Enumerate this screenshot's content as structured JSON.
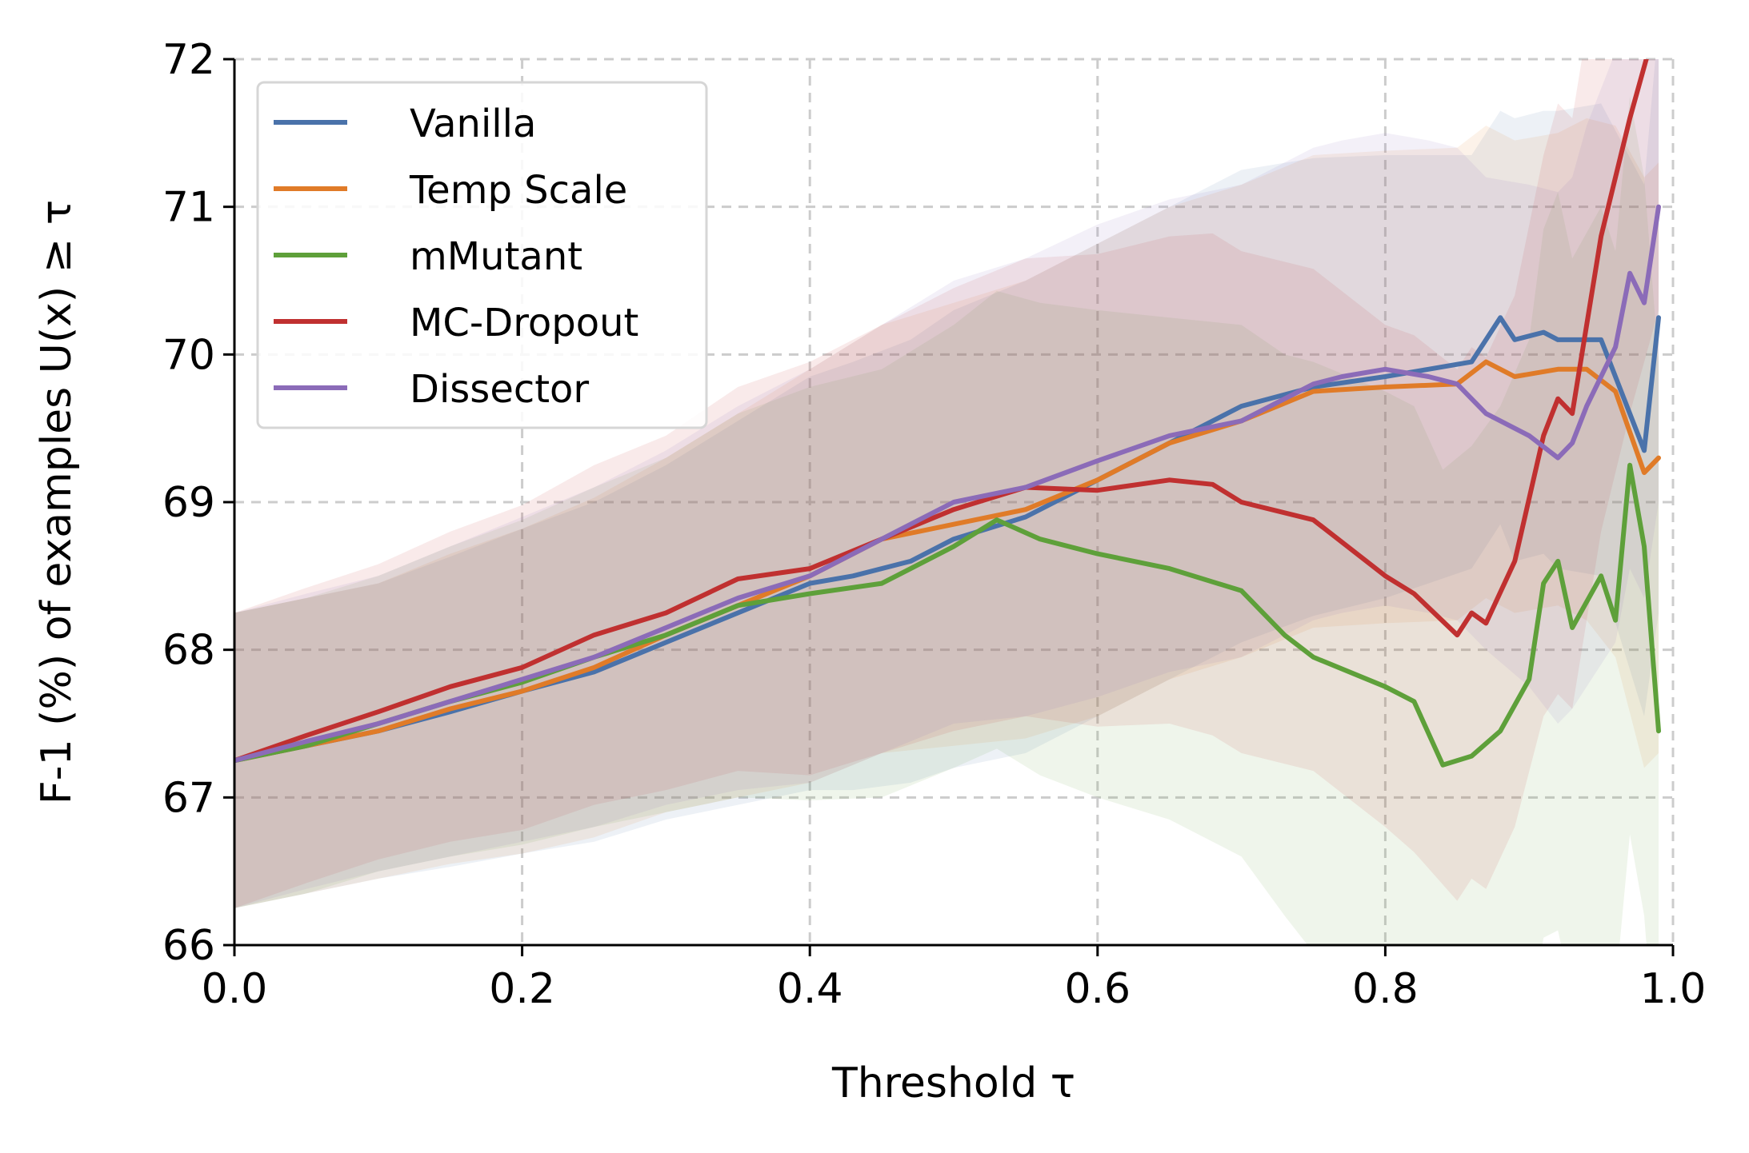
{
  "chart_data": {
    "type": "line",
    "xlabel": "Threshold τ",
    "ylabel": "F-1 (%) of examples U(x) ≥ τ",
    "xlim": [
      0.0,
      1.0
    ],
    "ylim": [
      66,
      72
    ],
    "x_ticks": [
      "0.0",
      "0.2",
      "0.4",
      "0.6",
      "0.8",
      "1.0"
    ],
    "y_ticks": [
      "66",
      "67",
      "68",
      "69",
      "70",
      "71",
      "72"
    ],
    "grid": true,
    "legend_position": "top-left",
    "series": [
      {
        "name": "Vanilla",
        "color": "#4a72aa",
        "points": [
          [
            0.0,
            67.25
          ],
          [
            0.05,
            67.35
          ],
          [
            0.1,
            67.45
          ],
          [
            0.15,
            67.58
          ],
          [
            0.2,
            67.72
          ],
          [
            0.25,
            67.85
          ],
          [
            0.3,
            68.05
          ],
          [
            0.35,
            68.25
          ],
          [
            0.4,
            68.45
          ],
          [
            0.43,
            68.5
          ],
          [
            0.47,
            68.6
          ],
          [
            0.5,
            68.75
          ],
          [
            0.55,
            68.9
          ],
          [
            0.6,
            69.15
          ],
          [
            0.65,
            69.4
          ],
          [
            0.7,
            69.65
          ],
          [
            0.75,
            69.78
          ],
          [
            0.8,
            69.85
          ],
          [
            0.83,
            69.9
          ],
          [
            0.86,
            69.95
          ],
          [
            0.88,
            70.25
          ],
          [
            0.89,
            70.1
          ],
          [
            0.91,
            70.15
          ],
          [
            0.92,
            70.1
          ],
          [
            0.95,
            70.1
          ],
          [
            0.98,
            69.35
          ],
          [
            0.99,
            70.25
          ]
        ],
        "band": [
          1.0,
          1.0,
          1.0,
          1.05,
          1.1,
          1.15,
          1.2,
          1.3,
          1.4,
          1.45,
          1.5,
          1.55,
          1.6,
          1.6,
          1.6,
          1.6,
          1.55,
          1.5,
          1.45,
          1.4,
          1.4,
          1.5,
          1.5,
          1.55,
          1.6,
          1.8,
          2.0
        ]
      },
      {
        "name": "Temp Scale",
        "color": "#e07b28",
        "points": [
          [
            0.0,
            67.25
          ],
          [
            0.05,
            67.35
          ],
          [
            0.1,
            67.45
          ],
          [
            0.15,
            67.6
          ],
          [
            0.2,
            67.72
          ],
          [
            0.25,
            67.88
          ],
          [
            0.3,
            68.1
          ],
          [
            0.35,
            68.3
          ],
          [
            0.4,
            68.5
          ],
          [
            0.45,
            68.75
          ],
          [
            0.5,
            68.85
          ],
          [
            0.55,
            68.95
          ],
          [
            0.6,
            69.15
          ],
          [
            0.65,
            69.4
          ],
          [
            0.7,
            69.55
          ],
          [
            0.75,
            69.75
          ],
          [
            0.8,
            69.78
          ],
          [
            0.85,
            69.8
          ],
          [
            0.87,
            69.95
          ],
          [
            0.89,
            69.85
          ],
          [
            0.92,
            69.9
          ],
          [
            0.94,
            69.9
          ],
          [
            0.96,
            69.75
          ],
          [
            0.98,
            69.2
          ],
          [
            0.99,
            69.3
          ]
        ],
        "band": [
          1.0,
          1.0,
          1.0,
          1.05,
          1.1,
          1.15,
          1.2,
          1.3,
          1.4,
          1.45,
          1.5,
          1.55,
          1.6,
          1.6,
          1.6,
          1.6,
          1.6,
          1.6,
          1.6,
          1.6,
          1.6,
          1.7,
          1.8,
          2.0,
          2.0
        ]
      },
      {
        "name": "mMutant",
        "color": "#5ea03a",
        "points": [
          [
            0.0,
            67.25
          ],
          [
            0.05,
            67.35
          ],
          [
            0.1,
            67.5
          ],
          [
            0.15,
            67.65
          ],
          [
            0.2,
            67.78
          ],
          [
            0.25,
            67.95
          ],
          [
            0.3,
            68.1
          ],
          [
            0.35,
            68.3
          ],
          [
            0.4,
            68.38
          ],
          [
            0.45,
            68.45
          ],
          [
            0.5,
            68.7
          ],
          [
            0.53,
            68.88
          ],
          [
            0.56,
            68.75
          ],
          [
            0.6,
            68.65
          ],
          [
            0.65,
            68.55
          ],
          [
            0.7,
            68.4
          ],
          [
            0.73,
            68.1
          ],
          [
            0.75,
            67.95
          ],
          [
            0.8,
            67.75
          ],
          [
            0.82,
            67.65
          ],
          [
            0.84,
            67.22
          ],
          [
            0.86,
            67.28
          ],
          [
            0.88,
            67.45
          ],
          [
            0.9,
            67.8
          ],
          [
            0.91,
            68.45
          ],
          [
            0.92,
            68.6
          ],
          [
            0.93,
            68.15
          ],
          [
            0.95,
            68.5
          ],
          [
            0.96,
            68.2
          ],
          [
            0.97,
            69.25
          ],
          [
            0.98,
            68.7
          ],
          [
            0.99,
            67.45
          ]
        ],
        "band": [
          1.0,
          1.0,
          1.0,
          1.05,
          1.1,
          1.15,
          1.2,
          1.3,
          1.4,
          1.45,
          1.5,
          1.55,
          1.6,
          1.65,
          1.7,
          1.8,
          1.9,
          2.0,
          2.0,
          2.0,
          2.0,
          2.1,
          2.2,
          2.3,
          2.4,
          2.5,
          2.5,
          2.5,
          2.5,
          2.5,
          2.5,
          2.5
        ]
      },
      {
        "name": "MC-Dropout",
        "color": "#c03030",
        "points": [
          [
            0.0,
            67.25
          ],
          [
            0.05,
            67.42
          ],
          [
            0.1,
            67.58
          ],
          [
            0.15,
            67.75
          ],
          [
            0.2,
            67.88
          ],
          [
            0.25,
            68.1
          ],
          [
            0.3,
            68.25
          ],
          [
            0.35,
            68.48
          ],
          [
            0.4,
            68.55
          ],
          [
            0.45,
            68.75
          ],
          [
            0.5,
            68.95
          ],
          [
            0.55,
            69.1
          ],
          [
            0.6,
            69.08
          ],
          [
            0.65,
            69.15
          ],
          [
            0.68,
            69.12
          ],
          [
            0.7,
            69.0
          ],
          [
            0.75,
            68.88
          ],
          [
            0.8,
            68.5
          ],
          [
            0.82,
            68.38
          ],
          [
            0.85,
            68.1
          ],
          [
            0.86,
            68.25
          ],
          [
            0.87,
            68.18
          ],
          [
            0.89,
            68.6
          ],
          [
            0.91,
            69.45
          ],
          [
            0.92,
            69.7
          ],
          [
            0.93,
            69.6
          ],
          [
            0.95,
            70.8
          ],
          [
            0.97,
            71.6
          ],
          [
            0.99,
            72.3
          ]
        ],
        "band": [
          1.0,
          1.0,
          1.0,
          1.05,
          1.1,
          1.15,
          1.2,
          1.3,
          1.4,
          1.45,
          1.5,
          1.55,
          1.6,
          1.65,
          1.7,
          1.7,
          1.7,
          1.7,
          1.75,
          1.8,
          1.8,
          1.8,
          1.8,
          1.9,
          2.0,
          2.0,
          2.0,
          2.0,
          2.0
        ]
      },
      {
        "name": "Dissector",
        "color": "#8b6bb8",
        "points": [
          [
            0.0,
            67.25
          ],
          [
            0.05,
            67.38
          ],
          [
            0.1,
            67.5
          ],
          [
            0.15,
            67.65
          ],
          [
            0.2,
            67.8
          ],
          [
            0.25,
            67.95
          ],
          [
            0.3,
            68.15
          ],
          [
            0.35,
            68.35
          ],
          [
            0.4,
            68.5
          ],
          [
            0.45,
            68.75
          ],
          [
            0.5,
            69.0
          ],
          [
            0.55,
            69.1
          ],
          [
            0.6,
            69.28
          ],
          [
            0.65,
            69.45
          ],
          [
            0.7,
            69.55
          ],
          [
            0.75,
            69.8
          ],
          [
            0.77,
            69.85
          ],
          [
            0.8,
            69.9
          ],
          [
            0.83,
            69.85
          ],
          [
            0.85,
            69.8
          ],
          [
            0.87,
            69.6
          ],
          [
            0.9,
            69.45
          ],
          [
            0.92,
            69.3
          ],
          [
            0.93,
            69.4
          ],
          [
            0.94,
            69.65
          ],
          [
            0.96,
            70.05
          ],
          [
            0.97,
            70.55
          ],
          [
            0.98,
            70.35
          ],
          [
            0.99,
            71.0
          ]
        ],
        "band": [
          1.0,
          1.0,
          1.0,
          1.05,
          1.1,
          1.15,
          1.2,
          1.3,
          1.4,
          1.45,
          1.5,
          1.55,
          1.6,
          1.6,
          1.6,
          1.6,
          1.6,
          1.6,
          1.6,
          1.6,
          1.6,
          1.7,
          1.8,
          1.8,
          1.9,
          2.0,
          2.0,
          2.0,
          2.0
        ]
      }
    ]
  }
}
